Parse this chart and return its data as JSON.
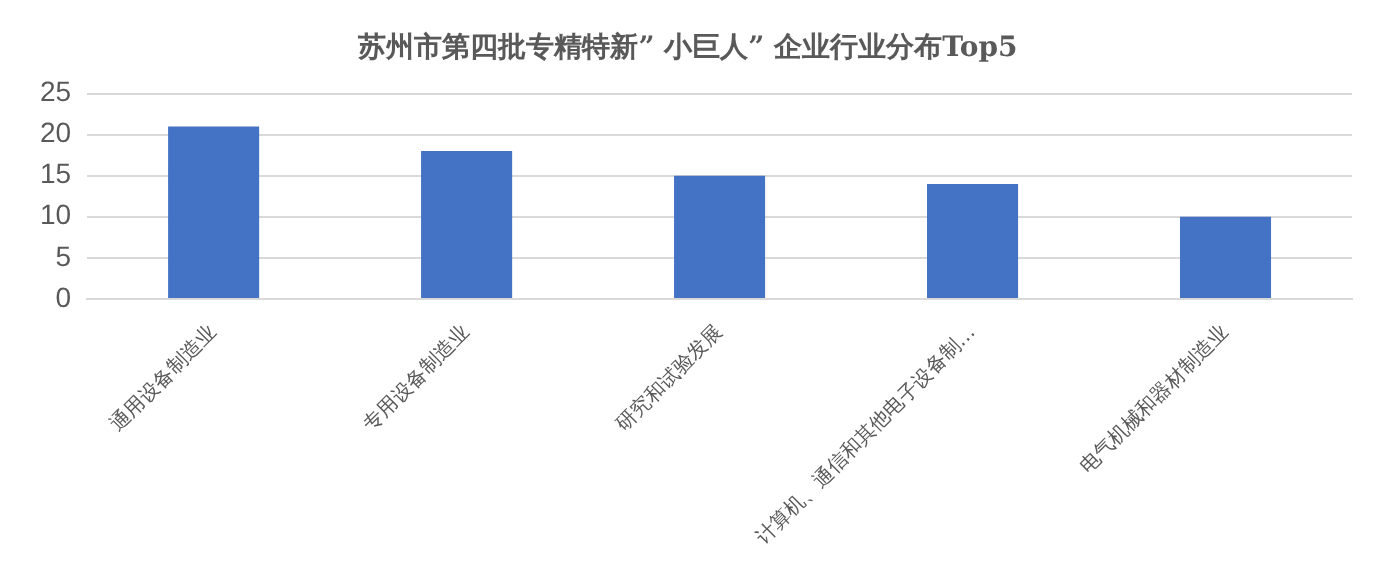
{
  "chart_data": {
    "type": "bar",
    "title": "苏州市第四批专精特新” 小巨人” 企业行业分布Top5",
    "categories": [
      "通用设备制造业",
      "专用设备制造业",
      "研究和试验发展",
      "计算机、通信和其他电子设备制…",
      "电气机械和器材制造业"
    ],
    "values": [
      21,
      18,
      15,
      14,
      10
    ],
    "color": "#4472c4",
    "ylim": [
      0,
      25
    ],
    "yticks": [
      0,
      5,
      10,
      15,
      20,
      25
    ],
    "grid": "y",
    "legend": false
  }
}
